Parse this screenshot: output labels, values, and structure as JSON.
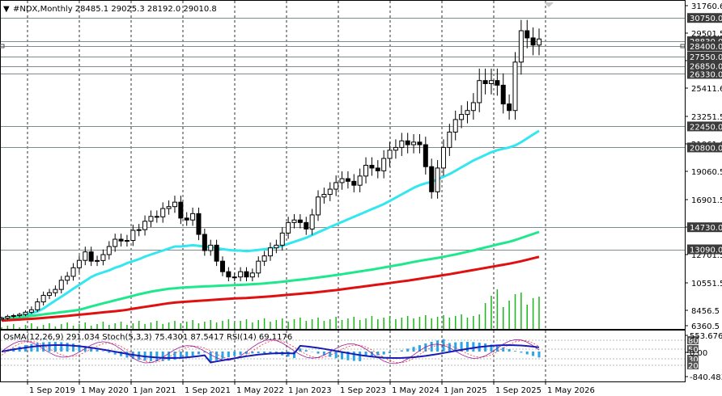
{
  "header": {
    "symbol_line": "#NDX,Monthly  28485.1 29025.3 28192.0 29010.8"
  },
  "indicator_header": "OsMA(12,26,9) 291.034  Stoch(5,3,3) 75.4301 87.5417  RSI(14) 69.1176",
  "colors": {
    "background": "#ffffff",
    "bull_candle": "#000000",
    "bear_candle": "#000000",
    "ema_fast": "#33e6f0",
    "ema_mid": "#1ee88c",
    "ema_slow": "#e01010",
    "volume": "#18b818",
    "osma": "#2aa5e8",
    "macd_line": "#1a1ab4",
    "stoch_main": "#9a1a9a",
    "stoch_signal": "#ff3030",
    "level_line": "#7f8c8d",
    "price_tag": "#3b3b3b"
  },
  "chart_data": [
    {
      "type": "candlestick",
      "title": "#NDX,Monthly",
      "last_bar": {
        "open": 28485.1,
        "high": 29025.3,
        "low": 28192.0,
        "close": 29010.8
      },
      "y_axis_ticks": [
        "31760.6",
        "29501.5",
        "27195.6",
        "25411.6",
        "23251.5",
        "21061.6",
        "19060.5",
        "16901.5",
        "14741.5",
        "12701.5",
        "10551.5",
        "8456.5",
        "6360.5"
      ],
      "ylim": [
        6360.5,
        31760.6
      ],
      "x_axis_labels": [
        "1 Sep 2019",
        "1 May 2020",
        "1 Jan 2021",
        "1 Sep 2021",
        "1 May 2022",
        "1 Jan 2023",
        "1 Sep 2023",
        "1 May 2024",
        "1 Jan 2025",
        "1 Sep 2025",
        "1 May 2026"
      ],
      "levels": [
        30750.0,
        28830.0,
        28400.0,
        27550.0,
        26850.0,
        26330.0,
        22450.0,
        20800.0,
        14730.0,
        13090.0
      ],
      "level_labels": [
        "30750.0",
        "28830.0",
        "28400.0",
        "27550.0",
        "26850.0",
        "26330.0",
        "22450.0",
        "20800.0",
        "14730.0",
        "13090.0"
      ],
      "closes": [
        7400,
        7630,
        7740,
        7900,
        8200,
        8500,
        9100,
        9600,
        9800,
        10050,
        10750,
        11050,
        11700,
        12260,
        12900,
        12200,
        12250,
        12700,
        13300,
        13840,
        13710,
        13750,
        14500,
        14550,
        15200,
        15580,
        15550,
        16200,
        16350,
        16700,
        15450,
        15300,
        15800,
        14200,
        13000,
        13400,
        12200,
        11400,
        11000,
        11000,
        11400,
        11000,
        11300,
        12200,
        12600,
        13200,
        13400,
        14300,
        15100,
        15300,
        15100,
        14600,
        15700,
        17100,
        17300,
        17700,
        18200,
        18500,
        18300,
        18000,
        18700,
        19500,
        19300,
        19100,
        20000,
        20600,
        20800,
        21300,
        21000,
        21200,
        21000,
        19400,
        17500,
        19300,
        20800,
        22000,
        23000,
        23400,
        23700,
        24300,
        25900,
        25700,
        25900,
        25600,
        24200,
        23700,
        27100,
        29700,
        29100,
        28500,
        29010
      ],
      "series": [
        {
          "name": "MA fast",
          "values": [
            7300,
            7450,
            7600,
            7700,
            7850,
            8050,
            8300,
            8600,
            8900,
            9200,
            9500,
            9800,
            10100,
            10400,
            10700,
            11000,
            11200,
            11350,
            11500,
            11700,
            11850,
            12050,
            12200,
            12350,
            12550,
            12700,
            12850,
            13000,
            13150,
            13300,
            13300,
            13350,
            13400,
            13350,
            13300,
            13250,
            13200,
            13100,
            13050,
            13000,
            13000,
            12950,
            13000,
            13050,
            13100,
            13150,
            13250,
            13350,
            13500,
            13650,
            13800,
            13950,
            14150,
            14350,
            14550,
            14750,
            14950,
            15150,
            15350,
            15550,
            15750,
            15950,
            16150,
            16350,
            16550,
            16800,
            17050,
            17300,
            17550,
            17800,
            18000,
            18150,
            18250,
            18450,
            18650,
            18850,
            19100,
            19350,
            19600,
            19850,
            20050,
            20250,
            20450,
            20600,
            20700,
            20800,
            20950,
            21200,
            21500,
            21800,
            22100
          ]
        },
        {
          "name": "MA mid",
          "values": [
            7200,
            7300,
            7400,
            7500,
            7600,
            7700,
            7800,
            7900,
            8000,
            8100,
            8200,
            8300,
            8400,
            8500,
            8620,
            8750,
            8870,
            8990,
            9100,
            9220,
            9330,
            9450,
            9560,
            9680,
            9780,
            9880,
            9960,
            10030,
            10100,
            10140,
            10180,
            10210,
            10240,
            10260,
            10280,
            10300,
            10320,
            10340,
            10360,
            10380,
            10400,
            10420,
            10450,
            10480,
            10510,
            10550,
            10590,
            10640,
            10690,
            10740,
            10790,
            10840,
            10900,
            10960,
            11020,
            11080,
            11140,
            11210,
            11280,
            11350,
            11420,
            11490,
            11560,
            11640,
            11720,
            11800,
            11880,
            11960,
            12050,
            12140,
            12220,
            12300,
            12370,
            12450,
            12530,
            12620,
            12710,
            12810,
            12910,
            13010,
            13120,
            13230,
            13340,
            13450,
            13550,
            13650,
            13780,
            13930,
            14080,
            14230,
            14380
          ]
        },
        {
          "name": "MA slow",
          "values": [
            7050,
            7100,
            7150,
            7200,
            7250,
            7300,
            7350,
            7420,
            7490,
            7560,
            7630,
            7700,
            7780,
            7860,
            7940,
            8020,
            8100,
            8180,
            8260,
            8340,
            8420,
            8500,
            8580,
            8650,
            8720,
            8790,
            8860,
            8930,
            9000,
            9050,
            9090,
            9120,
            9150,
            9180,
            9210,
            9240,
            9270,
            9300,
            9330,
            9360,
            9380,
            9400,
            9430,
            9460,
            9490,
            9520,
            9560,
            9600,
            9640,
            9680,
            9720,
            9760,
            9800,
            9850,
            9900,
            9950,
            10000,
            10060,
            10120,
            10180,
            10240,
            10300,
            10360,
            10420,
            10480,
            10540,
            10600,
            10660,
            10720,
            10790,
            10860,
            10930,
            11000,
            11070,
            11140,
            11210,
            11290,
            11370,
            11450,
            11530,
            11610,
            11690,
            11770,
            11850,
            11930,
            12010,
            12100,
            12200,
            12310,
            12420,
            12530
          ]
        }
      ]
    },
    {
      "type": "bar",
      "title": "OsMA(12,26,9)",
      "values_label": "291.034",
      "y_axis_ticks": [
        "553.676",
        "0.00",
        "-840.483"
      ],
      "ylim": [
        -840.483,
        553.676
      ],
      "stoch_levels": [
        "80",
        "50",
        "30",
        "20"
      ],
      "indicators": [
        {
          "name": "Stoch(5,3,3)",
          "values": [
            75.4301,
            87.5417
          ]
        },
        {
          "name": "RSI(14)",
          "values": [
            69.1176
          ]
        }
      ]
    }
  ]
}
